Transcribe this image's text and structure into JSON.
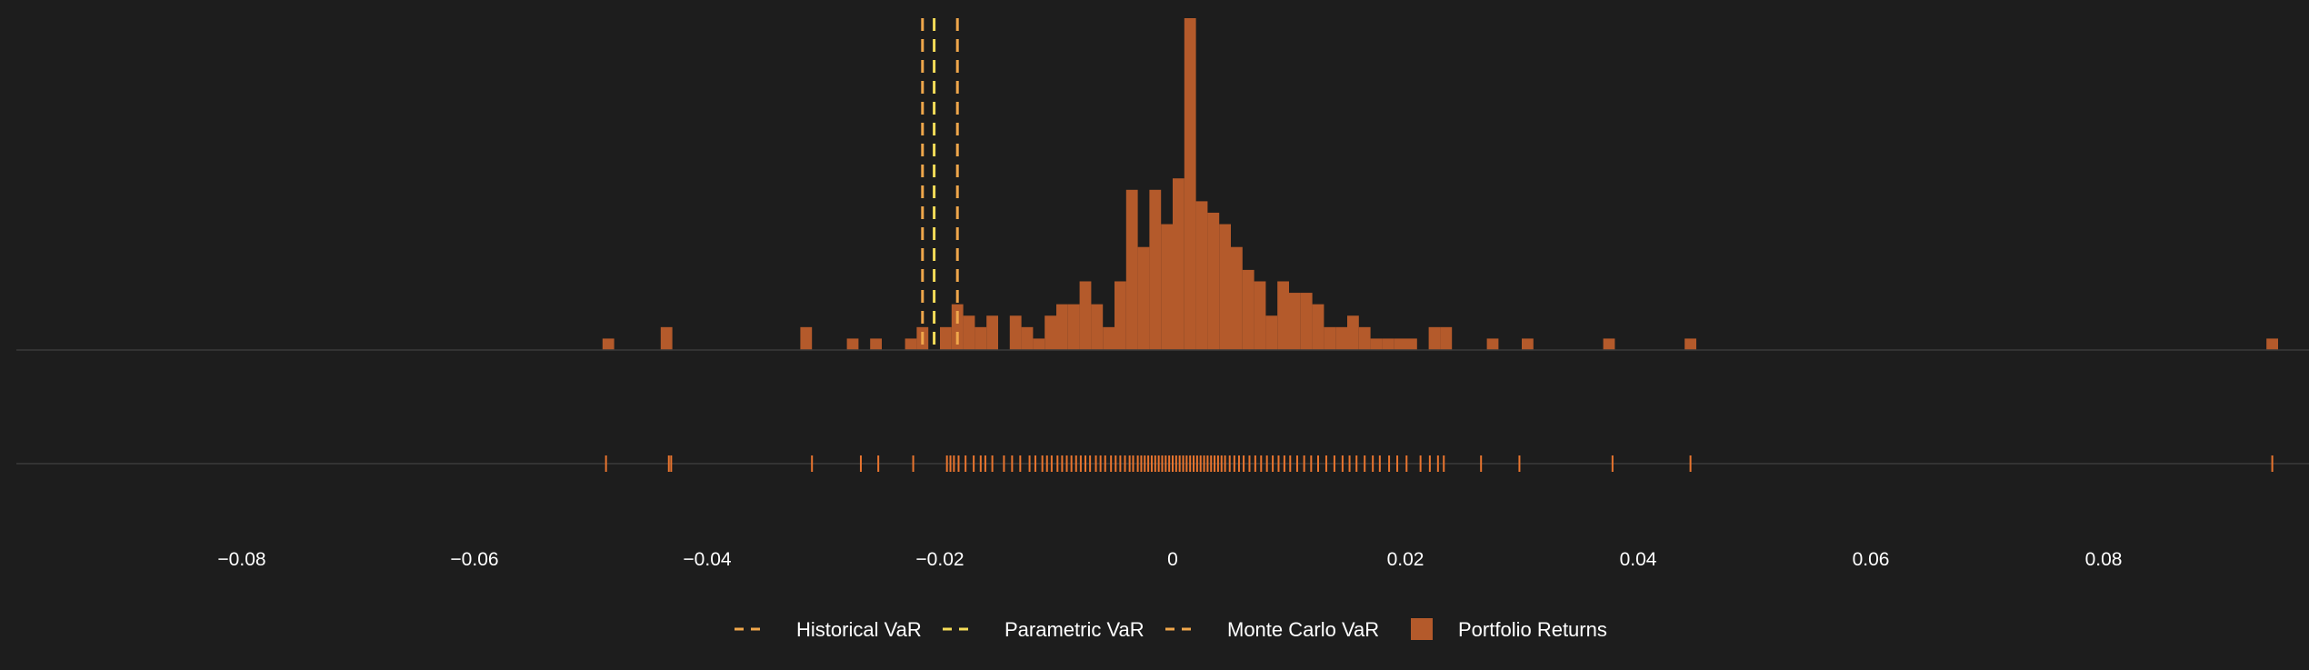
{
  "chart_data": {
    "type": "histogram",
    "title": "",
    "xlabel": "",
    "ylabel": "",
    "xlim": [
      -0.1,
      0.097
    ],
    "x_ticks": [
      -0.08,
      -0.06,
      -0.04,
      -0.02,
      0,
      0.02,
      0.04,
      0.06,
      0.08
    ],
    "x_tick_labels": [
      "−0.08",
      "−0.06",
      "−0.04",
      "−0.02",
      "0",
      "0.02",
      "0.04",
      "0.06",
      "0.08"
    ],
    "grid": false,
    "legend_position": "bottom-center",
    "bin_width": 0.001,
    "series": [
      {
        "name": "Portfolio Returns",
        "kind": "histogram",
        "color": "#b45a2b",
        "bins": [
          {
            "x0": -0.049,
            "count": 1
          },
          {
            "x0": -0.044,
            "count": 2
          },
          {
            "x0": -0.032,
            "count": 2
          },
          {
            "x0": -0.028,
            "count": 1
          },
          {
            "x0": -0.026,
            "count": 1
          },
          {
            "x0": -0.023,
            "count": 1
          },
          {
            "x0": -0.022,
            "count": 2
          },
          {
            "x0": -0.02,
            "count": 2
          },
          {
            "x0": -0.019,
            "count": 4
          },
          {
            "x0": -0.018,
            "count": 3
          },
          {
            "x0": -0.017,
            "count": 2
          },
          {
            "x0": -0.016,
            "count": 3
          },
          {
            "x0": -0.014,
            "count": 3
          },
          {
            "x0": -0.013,
            "count": 2
          },
          {
            "x0": -0.012,
            "count": 1
          },
          {
            "x0": -0.011,
            "count": 3
          },
          {
            "x0": -0.01,
            "count": 4
          },
          {
            "x0": -0.009,
            "count": 4
          },
          {
            "x0": -0.008,
            "count": 6
          },
          {
            "x0": -0.007,
            "count": 4
          },
          {
            "x0": -0.006,
            "count": 2
          },
          {
            "x0": -0.005,
            "count": 6
          },
          {
            "x0": -0.004,
            "count": 14
          },
          {
            "x0": -0.003,
            "count": 9
          },
          {
            "x0": -0.002,
            "count": 14
          },
          {
            "x0": -0.001,
            "count": 11
          },
          {
            "x0": 0.0,
            "count": 15
          },
          {
            "x0": 0.001,
            "count": 29
          },
          {
            "x0": 0.002,
            "count": 13
          },
          {
            "x0": 0.003,
            "count": 12
          },
          {
            "x0": 0.004,
            "count": 11
          },
          {
            "x0": 0.005,
            "count": 9
          },
          {
            "x0": 0.006,
            "count": 7
          },
          {
            "x0": 0.007,
            "count": 6
          },
          {
            "x0": 0.008,
            "count": 3
          },
          {
            "x0": 0.009,
            "count": 6
          },
          {
            "x0": 0.01,
            "count": 5
          },
          {
            "x0": 0.011,
            "count": 5
          },
          {
            "x0": 0.012,
            "count": 4
          },
          {
            "x0": 0.013,
            "count": 2
          },
          {
            "x0": 0.014,
            "count": 2
          },
          {
            "x0": 0.015,
            "count": 3
          },
          {
            "x0": 0.016,
            "count": 2
          },
          {
            "x0": 0.017,
            "count": 1
          },
          {
            "x0": 0.018,
            "count": 1
          },
          {
            "x0": 0.019,
            "count": 1
          },
          {
            "x0": 0.02,
            "count": 1
          },
          {
            "x0": 0.022,
            "count": 2
          },
          {
            "x0": 0.023,
            "count": 2
          },
          {
            "x0": 0.027,
            "count": 1
          },
          {
            "x0": 0.03,
            "count": 1
          },
          {
            "x0": 0.037,
            "count": 1
          },
          {
            "x0": 0.044,
            "count": 1
          },
          {
            "x0": 0.094,
            "count": 1
          }
        ]
      }
    ],
    "rug": {
      "color": "#e9752f",
      "values": [
        -0.0487,
        -0.0433,
        -0.0431,
        -0.031,
        -0.0268,
        -0.0253,
        -0.0223,
        -0.0194,
        -0.0191,
        -0.0188,
        -0.0184,
        -0.0178,
        -0.0171,
        -0.0165,
        -0.0161,
        -0.0155,
        -0.0145,
        -0.0138,
        -0.0131,
        -0.0123,
        -0.0118,
        -0.0112,
        -0.0108,
        -0.0104,
        -0.0099,
        -0.0095,
        -0.0091,
        -0.0087,
        -0.0083,
        -0.0079,
        -0.0075,
        -0.0071,
        -0.0066,
        -0.0062,
        -0.0058,
        -0.0053,
        -0.0049,
        -0.0045,
        -0.0041,
        -0.0037,
        -0.0034,
        -0.003,
        -0.0027,
        -0.0024,
        -0.0021,
        -0.0018,
        -0.0015,
        -0.0012,
        -0.0009,
        -0.0006,
        -0.0003,
        0.0,
        0.0003,
        0.0006,
        0.0009,
        0.0012,
        0.0015,
        0.0018,
        0.0021,
        0.0024,
        0.0027,
        0.003,
        0.0033,
        0.0036,
        0.0039,
        0.0042,
        0.0045,
        0.0049,
        0.0053,
        0.0057,
        0.0061,
        0.0066,
        0.0071,
        0.0076,
        0.0081,
        0.0086,
        0.0091,
        0.0096,
        0.0101,
        0.0107,
        0.0113,
        0.0119,
        0.0125,
        0.0132,
        0.0139,
        0.0146,
        0.0152,
        0.0158,
        0.0165,
        0.0172,
        0.0178,
        0.0186,
        0.0193,
        0.0201,
        0.0213,
        0.0221,
        0.0228,
        0.0233,
        0.0265,
        0.0298,
        0.0378,
        0.0445,
        0.0945
      ]
    },
    "reference_lines": [
      {
        "name": "Historical VaR",
        "x": -0.0215,
        "color": "#f0a74b",
        "style": "dashed"
      },
      {
        "name": "Parametric VaR",
        "x": -0.0205,
        "color": "#f5dc58",
        "style": "dashed"
      },
      {
        "name": "Monte Carlo VaR",
        "x": -0.0185,
        "color": "#f0a74b",
        "style": "dashed"
      }
    ],
    "legend": [
      {
        "label": "Historical VaR",
        "kind": "dash",
        "color": "#f0a74b"
      },
      {
        "label": "Parametric VaR",
        "kind": "dash",
        "color": "#f5dc58"
      },
      {
        "label": "Monte Carlo VaR",
        "kind": "dash",
        "color": "#f0a74b"
      },
      {
        "label": "Portfolio Returns",
        "kind": "swatch",
        "color": "#b45a2b"
      }
    ]
  }
}
